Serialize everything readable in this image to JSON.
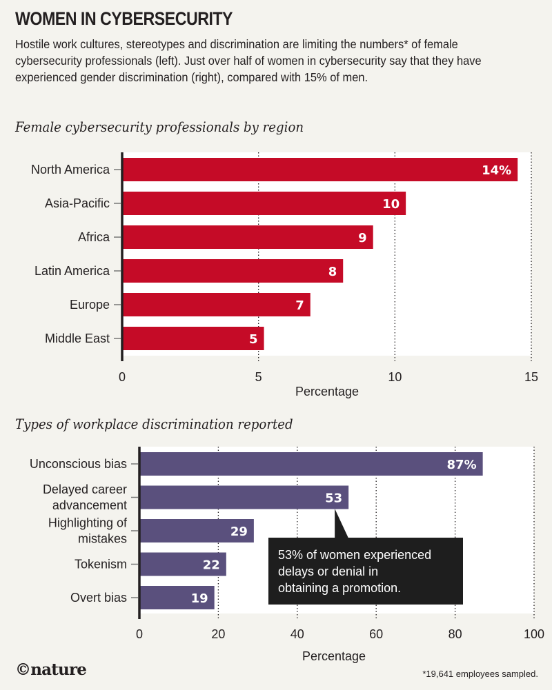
{
  "header": {
    "title": "WOMEN IN CYBERSECURITY",
    "intro": "Hostile work cultures, stereotypes and discrimination are limiting the numbers* of female cybersecurity professionals (left). Just over half of women in cybersecurity say that they have experienced gender discrimination (right), compared with 15% of men."
  },
  "footer": {
    "logo": "©nature",
    "footnote": "*19,641 employees sampled."
  },
  "colors": {
    "background": "#f4f3ee",
    "plot_background": "#ffffff",
    "region_bar": "#c50b27",
    "discrimination_bar": "#5a507d",
    "callout": "#1e1e1e",
    "axis": "#231f20"
  },
  "chart_data": [
    {
      "type": "bar",
      "orientation": "horizontal",
      "title": "Female cybersecurity professionals by region",
      "categories": [
        "North America",
        "Asia-Pacific",
        "Africa",
        "Latin America",
        "Europe",
        "Middle East"
      ],
      "values": [
        14.5,
        10.4,
        9.2,
        8.1,
        6.9,
        5.2
      ],
      "data_labels": [
        "14%",
        "10",
        "9",
        "8",
        "7",
        "5"
      ],
      "xlabel": "Percentage",
      "ylabel": "",
      "xlim": [
        0,
        15
      ],
      "xticks": [
        0,
        5,
        10,
        15
      ],
      "xtick_labels": [
        "0",
        "5",
        "10",
        "15"
      ],
      "grid": "vertical dotted",
      "legend": "none"
    },
    {
      "type": "bar",
      "orientation": "horizontal",
      "title": "Types of workplace discrimination reported",
      "categories": [
        "Unconscious bias",
        "Delayed career advancement",
        "Highlighting of mistakes",
        "Tokenism",
        "Overt bias"
      ],
      "category_lines": [
        [
          "Unconscious bias"
        ],
        [
          "Delayed career",
          "advancement"
        ],
        [
          "Highlighting of",
          "mistakes"
        ],
        [
          "Tokenism"
        ],
        [
          "Overt bias"
        ]
      ],
      "values": [
        87,
        53,
        29,
        22,
        19
      ],
      "data_labels": [
        "87%",
        "53",
        "29",
        "22",
        "19"
      ],
      "xlabel": "Percentage",
      "ylabel": "",
      "xlim": [
        0,
        100
      ],
      "xticks": [
        0,
        20,
        40,
        60,
        80,
        100
      ],
      "xtick_labels": [
        "0",
        "20",
        "40",
        "60",
        "80",
        "100"
      ],
      "grid": "vertical dotted",
      "legend": "none",
      "annotation": {
        "target_category": "Delayed career advancement",
        "lines": [
          "53% of women experienced",
          "delays or denial in",
          "obtaining a promotion."
        ]
      }
    }
  ]
}
